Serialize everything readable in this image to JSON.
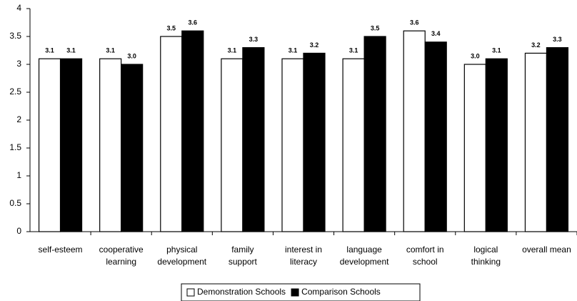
{
  "chart_data": {
    "type": "bar",
    "categories": [
      [
        "self-esteem"
      ],
      [
        "cooperative",
        "learning"
      ],
      [
        "physical",
        "development"
      ],
      [
        "family",
        "support"
      ],
      [
        "interest in",
        "literacy"
      ],
      [
        "language",
        "development"
      ],
      [
        "comfort in",
        "school"
      ],
      [
        "logical",
        "thinking"
      ],
      [
        "overall mean"
      ]
    ],
    "series": [
      {
        "name": "Demonstration Schools",
        "color": "#ffffff",
        "values": [
          3.1,
          3.1,
          3.5,
          3.1,
          3.1,
          3.1,
          3.6,
          3.0,
          3.2
        ],
        "value_labels": [
          "3.1",
          "3.1",
          "3.5",
          "3.1",
          "3.1",
          "3.1",
          "3.6",
          "3.0",
          "3.2"
        ]
      },
      {
        "name": "Comparison Schools",
        "color": "#000000",
        "values": [
          3.1,
          3.0,
          3.6,
          3.3,
          3.2,
          3.5,
          3.4,
          3.1,
          3.3
        ],
        "value_labels": [
          "3.1",
          "3.0",
          "3.6",
          "3.3",
          "3.2",
          "3.5",
          "3.4",
          "3.1",
          "3.3"
        ]
      }
    ],
    "ylim": [
      0,
      4
    ],
    "yticks": [
      0,
      0.5,
      1,
      1.5,
      2,
      2.5,
      3,
      3.5,
      4
    ],
    "grid": false,
    "legend": "bottom"
  }
}
